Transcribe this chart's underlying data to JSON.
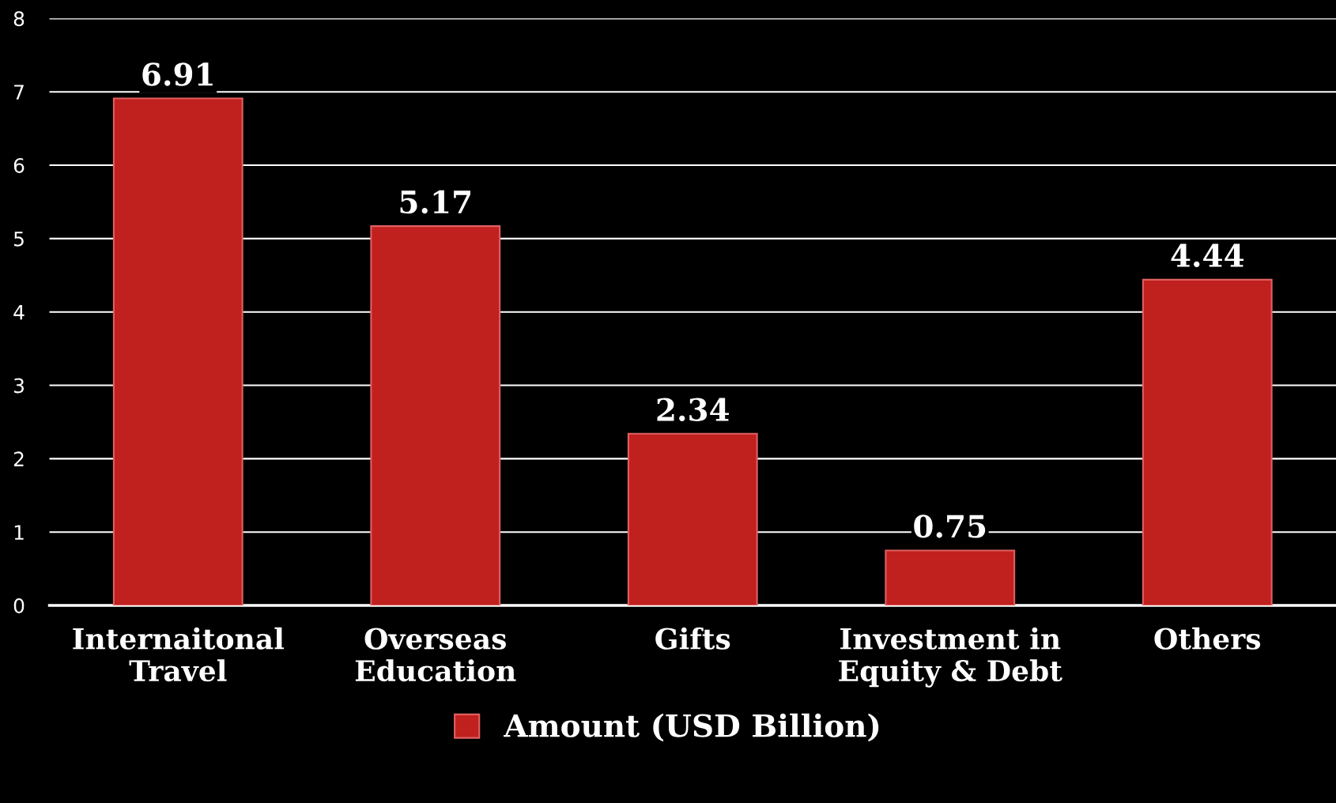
{
  "chart_data": {
    "type": "bar",
    "categories": [
      "Internaitonal\nTravel",
      "Overseas\nEducation",
      "Gifts",
      "Investment in\nEquity & Debt",
      "Others"
    ],
    "series": [
      {
        "name": "Amount (USD Billion)",
        "color": "#c0201e",
        "values": [
          6.91,
          5.17,
          2.34,
          0.75,
          4.44
        ]
      }
    ],
    "ylim": [
      0,
      8
    ],
    "yticks": [
      0,
      1,
      2,
      3,
      4,
      5,
      6,
      7,
      8
    ],
    "grid": "y",
    "legend": "bottom",
    "data_labels": true
  }
}
